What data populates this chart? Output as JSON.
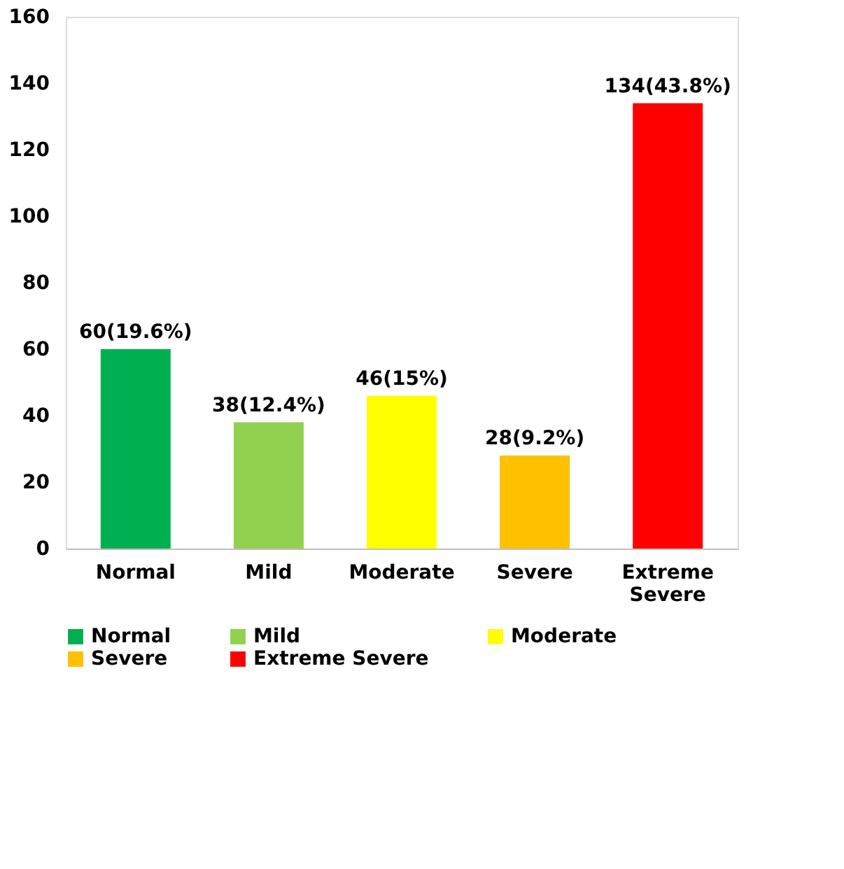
{
  "chart_data": {
    "type": "bar",
    "categories": [
      "Normal",
      "Mild",
      "Moderate",
      "Severe",
      "Extreme Severe"
    ],
    "series": [
      {
        "name": "Normal",
        "color": "#00b050",
        "values": [
          60,
          null,
          null,
          null,
          null
        ],
        "value_labels": [
          "60(19.6%)",
          null,
          null,
          null,
          null
        ]
      },
      {
        "name": "Mild",
        "color": "#92d050",
        "values": [
          null,
          38,
          null,
          null,
          null
        ],
        "value_labels": [
          null,
          "38(12.4%)",
          null,
          null,
          null
        ]
      },
      {
        "name": "Moderate",
        "color": "#ffff00",
        "values": [
          null,
          null,
          46,
          null,
          null
        ],
        "value_labels": [
          null,
          null,
          "46(15%)",
          null,
          null
        ]
      },
      {
        "name": "Severe",
        "color": "#ffc000",
        "values": [
          null,
          null,
          null,
          28,
          null
        ],
        "value_labels": [
          null,
          null,
          null,
          "28(9.2%)",
          null
        ]
      },
      {
        "name": "Extreme Severe",
        "color": "#ff0000",
        "values": [
          null,
          null,
          null,
          null,
          134
        ],
        "value_labels": [
          null,
          null,
          null,
          null,
          "134(43.8%)"
        ]
      }
    ],
    "ylim": [
      0,
      160
    ],
    "yticks": [
      0,
      20,
      40,
      60,
      80,
      100,
      120,
      140,
      160
    ],
    "grid": false,
    "legend": "bottom"
  }
}
